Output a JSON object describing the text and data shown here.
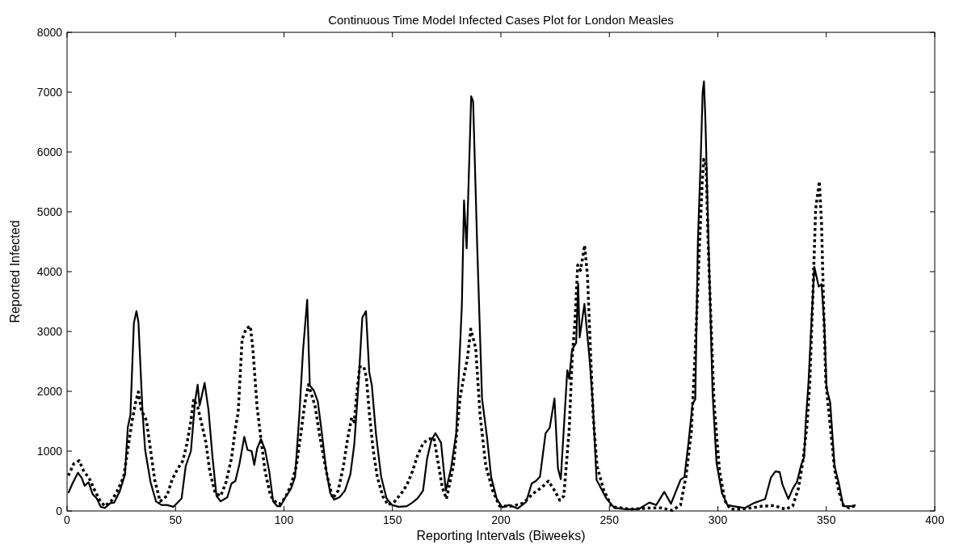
{
  "chart_data": {
    "type": "line",
    "title": "Continuous Time Model Infected Cases Plot for London Measles",
    "xlabel": "Reporting Intervals (Biweeks)",
    "ylabel": "Reported Infected",
    "xlim": [
      0,
      400
    ],
    "xticks": [
      0,
      50,
      100,
      150,
      200,
      250,
      300,
      350,
      400
    ],
    "ylim": [
      0,
      8000
    ],
    "yticks": [
      0,
      1000,
      2000,
      3000,
      4000,
      5000,
      6000,
      7000,
      8000
    ],
    "grid": false,
    "marker": "none",
    "series": [
      {
        "color": "#000000",
        "line_style": "solid",
        "x": [
          0.6,
          2.5,
          5,
          6.8,
          8.1,
          9.9,
          11.8,
          13.7,
          15.5,
          17.4,
          19.9,
          21.7,
          24.2,
          26.7,
          28,
          29.2,
          30.8,
          32,
          32.9,
          34.8,
          36,
          38.5,
          41,
          43.5,
          46,
          49.1,
          52.8,
          54.7,
          57.1,
          59,
          60.2,
          61.1,
          63.4,
          65.2,
          67.1,
          68.9,
          70.8,
          73.9,
          75.8,
          77.6,
          79.5,
          81.7,
          83.2,
          85.1,
          86.3,
          87.6,
          89.4,
          91.3,
          93.2,
          95,
          96.9,
          98.3,
          100.7,
          103.2,
          105.1,
          107,
          108.8,
          110.7,
          111.9,
          113.8,
          115.6,
          117.5,
          119.4,
          121.3,
          123.1,
          125.6,
          128.1,
          130.6,
          132.4,
          134.3,
          136.1,
          137.8,
          139.3,
          140.5,
          142.4,
          144.8,
          147.3,
          149.8,
          152.9,
          156.6,
          159.2,
          161.6,
          164.1,
          166,
          167.9,
          169.8,
          172.4,
          174.6,
          177,
          179.4,
          182,
          183,
          184.2,
          186.3,
          187.2,
          189.1,
          191.3,
          193.6,
          195.5,
          198.1,
          200.6,
          203.8,
          207.7,
          211.6,
          214.2,
          216.1,
          218,
          220.6,
          222.5,
          224.7,
          226.3,
          227.6,
          230.6,
          231.5,
          232.8,
          234.7,
          235.6,
          236.3,
          238.5,
          240.9,
          242.4,
          244.1,
          248.6,
          252.3,
          257.3,
          263.5,
          268.4,
          271.6,
          275.3,
          278.4,
          282.8,
          284.6,
          286.5,
          288.3,
          289.6,
          290.8,
          292.2,
          293,
          293.6,
          294.3,
          295.7,
          297.6,
          299.4,
          301.9,
          304.4,
          307.2,
          312.5,
          316.5,
          321.8,
          324.5,
          326.5,
          328.5,
          329.8,
          332.5,
          334.5,
          336.5,
          338.5,
          339.8,
          340.5,
          341.8,
          343.1,
          344.5,
          346.5,
          347.8,
          349.1,
          350.1,
          351.8,
          353.8,
          355.8,
          357.8,
          361.8,
          363.5
        ],
        "values": [
          300,
          460,
          640,
          550,
          420,
          480,
          280,
          210,
          70,
          50,
          130,
          140,
          320,
          610,
          1400,
          1600,
          3140,
          3340,
          3160,
          1650,
          1020,
          480,
          160,
          100,
          100,
          70,
          210,
          750,
          1000,
          1830,
          2110,
          1760,
          2140,
          1690,
          880,
          250,
          160,
          230,
          460,
          500,
          790,
          1240,
          1020,
          1000,
          770,
          1040,
          1200,
          1020,
          660,
          160,
          80,
          80,
          230,
          370,
          570,
          1560,
          2690,
          3530,
          2100,
          2010,
          1830,
          1290,
          700,
          300,
          190,
          230,
          340,
          610,
          1110,
          2100,
          3230,
          3340,
          2320,
          2100,
          1290,
          570,
          210,
          100,
          70,
          80,
          140,
          210,
          340,
          880,
          1180,
          1300,
          1140,
          340,
          710,
          1300,
          3440,
          5190,
          4390,
          6930,
          6840,
          4390,
          1880,
          1230,
          570,
          200,
          60,
          100,
          40,
          150,
          460,
          500,
          570,
          1300,
          1390,
          1880,
          710,
          530,
          2350,
          2210,
          2700,
          2810,
          3800,
          2900,
          3460,
          2530,
          1780,
          520,
          210,
          50,
          30,
          30,
          140,
          100,
          320,
          120,
          520,
          570,
          1150,
          1780,
          1870,
          4490,
          6000,
          7000,
          7180,
          6500,
          4490,
          1960,
          800,
          300,
          100,
          80,
          50,
          130,
          200,
          560,
          660,
          650,
          440,
          200,
          370,
          490,
          780,
          900,
          1480,
          2150,
          3120,
          4080,
          3750,
          3790,
          3120,
          2060,
          1810,
          750,
          460,
          80,
          80,
          100
        ]
      },
      {
        "color": "#000000",
        "line_style": "dotted",
        "x": [
          0.6,
          3.1,
          5.6,
          7.5,
          10.6,
          12.4,
          14.9,
          17.4,
          20.5,
          23,
          26.1,
          28,
          29.8,
          31.7,
          32.9,
          34.2,
          36.6,
          38.5,
          40.4,
          42.9,
          46,
          48.4,
          50.9,
          53.4,
          55.3,
          57.1,
          58.4,
          60.2,
          62.1,
          64,
          65.8,
          68.3,
          70.8,
          73.3,
          75.8,
          77.6,
          78.9,
          80.7,
          82.6,
          84.5,
          85.7,
          87.6,
          89.4,
          91.3,
          93.8,
          96.9,
          98.3,
          100.7,
          103.2,
          105.7,
          107.6,
          109.5,
          111.3,
          112.6,
          114.4,
          116.3,
          118.1,
          120,
          122.5,
          125,
          127.4,
          129.3,
          131.2,
          132.4,
          133.7,
          134.9,
          136.8,
          138,
          139.3,
          141.1,
          143,
          145.5,
          148,
          151.1,
          154.2,
          156.6,
          159.2,
          161.6,
          164.1,
          166.6,
          169.1,
          170.4,
          173,
          174.9,
          178.1,
          181.3,
          183.2,
          184.5,
          186.1,
          188.4,
          190.4,
          193,
          196.2,
          199.4,
          205.2,
          210.3,
          214.8,
          218.7,
          221.9,
          225.1,
          227.1,
          229,
          231.5,
          232.8,
          234.1,
          235.4,
          236.7,
          238.6,
          239.9,
          241.2,
          242.5,
          244.3,
          247.4,
          251.1,
          259.8,
          269.1,
          274.1,
          279,
          282.8,
          285.3,
          287.8,
          289.6,
          291.5,
          292.8,
          293.5,
          294.6,
          295.5,
          296.4,
          298.3,
          300.8,
          303.3,
          305.8,
          309.8,
          315.2,
          320.5,
          325.8,
          331.1,
          334.5,
          337.1,
          339.1,
          341.1,
          342.4,
          343.8,
          345.1,
          346.8,
          347.8,
          348.8,
          349.8,
          351.8,
          353.8,
          355.8,
          357.8,
          360.5,
          363.5
        ],
        "values": [
          590,
          790,
          840,
          680,
          520,
          370,
          190,
          80,
          170,
          320,
          570,
          1020,
          1470,
          1830,
          1990,
          1690,
          1510,
          1020,
          520,
          160,
          250,
          520,
          700,
          840,
          1130,
          1510,
          1870,
          1740,
          1450,
          1150,
          660,
          300,
          250,
          480,
          880,
          1380,
          1650,
          2870,
          3050,
          3090,
          2690,
          1740,
          1200,
          660,
          250,
          120,
          120,
          230,
          430,
          750,
          1240,
          1780,
          2110,
          1960,
          1740,
          1290,
          930,
          570,
          210,
          340,
          750,
          1200,
          1560,
          1490,
          2010,
          2410,
          2410,
          2230,
          1650,
          1020,
          570,
          250,
          100,
          160,
          300,
          430,
          660,
          930,
          1130,
          1200,
          1220,
          950,
          390,
          200,
          760,
          1920,
          2300,
          2530,
          3040,
          2720,
          1600,
          760,
          340,
          80,
          80,
          130,
          290,
          390,
          500,
          320,
          180,
          250,
          1370,
          2530,
          3140,
          4110,
          4020,
          4440,
          3930,
          2760,
          1600,
          750,
          350,
          70,
          30,
          50,
          50,
          10,
          100,
          570,
          1330,
          2690,
          4400,
          5500,
          5880,
          5780,
          4500,
          3590,
          1780,
          660,
          170,
          30,
          30,
          50,
          80,
          90,
          30,
          80,
          370,
          800,
          1430,
          2150,
          3600,
          5050,
          5510,
          4810,
          3360,
          2150,
          1430,
          700,
          320,
          100,
          50,
          90
        ]
      }
    ]
  }
}
